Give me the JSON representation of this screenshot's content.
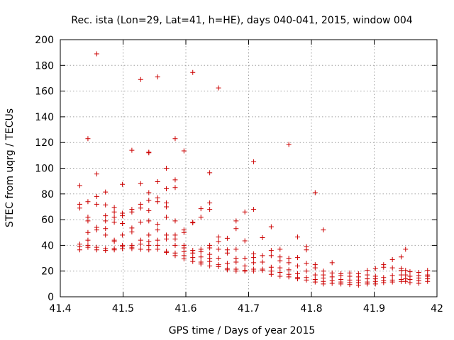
{
  "chart_data": {
    "type": "scatter",
    "title": "Rec. ista (Lon=29, Lat=41, h=HE), days 040-041, 2015, window 004",
    "xlabel": "GPS time / Days of year 2015",
    "ylabel": "STEC from uqrg / TECUs",
    "xlim": [
      41.4,
      42
    ],
    "ylim": [
      0,
      200
    ],
    "xticks": [
      41.4,
      41.5,
      41.6,
      41.7,
      41.8,
      41.9,
      42
    ],
    "xtick_labels": [
      "41.4",
      "41.5",
      "41.6",
      "41.7",
      "41.8",
      "41.9",
      "42"
    ],
    "yticks": [
      0,
      20,
      40,
      60,
      80,
      100,
      120,
      140,
      160,
      180,
      200
    ],
    "ytick_labels": [
      "0",
      "20",
      "40",
      "60",
      "80",
      "100",
      "120",
      "140",
      "160",
      "180",
      "200"
    ],
    "grid": true,
    "marker": "+",
    "color": "#cc0000",
    "points": [
      [
        41.431,
        86.5
      ],
      [
        41.431,
        72
      ],
      [
        41.431,
        69
      ],
      [
        41.431,
        41
      ],
      [
        41.431,
        39
      ],
      [
        41.431,
        36.5
      ],
      [
        41.444,
        123
      ],
      [
        41.444,
        74
      ],
      [
        41.444,
        62
      ],
      [
        41.444,
        59
      ],
      [
        41.444,
        50
      ],
      [
        41.444,
        44
      ],
      [
        41.444,
        40
      ],
      [
        41.444,
        38.5
      ],
      [
        41.458,
        189
      ],
      [
        41.458,
        95.5
      ],
      [
        41.458,
        78
      ],
      [
        41.458,
        72
      ],
      [
        41.458,
        54
      ],
      [
        41.458,
        52
      ],
      [
        41.458,
        38.5
      ],
      [
        41.458,
        36.5
      ],
      [
        41.472,
        81.5
      ],
      [
        41.472,
        71.5
      ],
      [
        41.472,
        63
      ],
      [
        41.472,
        59
      ],
      [
        41.472,
        53
      ],
      [
        41.472,
        48
      ],
      [
        41.472,
        37.5
      ],
      [
        41.472,
        36
      ],
      [
        41.486,
        69.5
      ],
      [
        41.486,
        66
      ],
      [
        41.486,
        62
      ],
      [
        41.486,
        58
      ],
      [
        41.486,
        44
      ],
      [
        41.486,
        43
      ],
      [
        41.486,
        37.5
      ],
      [
        41.486,
        36.5
      ],
      [
        41.499,
        87.5
      ],
      [
        41.499,
        65
      ],
      [
        41.499,
        63
      ],
      [
        41.499,
        57
      ],
      [
        41.499,
        48
      ],
      [
        41.499,
        40
      ],
      [
        41.499,
        39
      ],
      [
        41.499,
        37.5
      ],
      [
        41.514,
        114
      ],
      [
        41.514,
        68
      ],
      [
        41.514,
        66
      ],
      [
        41.514,
        53.5
      ],
      [
        41.514,
        50.5
      ],
      [
        41.514,
        40
      ],
      [
        41.514,
        38.5
      ],
      [
        41.514,
        37.5
      ],
      [
        41.528,
        169
      ],
      [
        41.528,
        88
      ],
      [
        41.528,
        72
      ],
      [
        41.528,
        69
      ],
      [
        41.528,
        58
      ],
      [
        41.528,
        44
      ],
      [
        41.528,
        41
      ],
      [
        41.528,
        37
      ],
      [
        41.541,
        112.5
      ],
      [
        41.541,
        112
      ],
      [
        41.541,
        81
      ],
      [
        41.541,
        75
      ],
      [
        41.541,
        67
      ],
      [
        41.541,
        59
      ],
      [
        41.541,
        48
      ],
      [
        41.541,
        43
      ],
      [
        41.541,
        40
      ],
      [
        41.541,
        36.5
      ],
      [
        41.555,
        171
      ],
      [
        41.555,
        89.5
      ],
      [
        41.555,
        77
      ],
      [
        41.555,
        74
      ],
      [
        41.555,
        56.5
      ],
      [
        41.555,
        52
      ],
      [
        41.555,
        44
      ],
      [
        41.555,
        40
      ],
      [
        41.555,
        37
      ],
      [
        41.569,
        100
      ],
      [
        41.569,
        84
      ],
      [
        41.569,
        73
      ],
      [
        41.569,
        70
      ],
      [
        41.569,
        62
      ],
      [
        41.569,
        48
      ],
      [
        41.569,
        45
      ],
      [
        41.569,
        35.5
      ],
      [
        41.569,
        34.5
      ],
      [
        41.583,
        123
      ],
      [
        41.583,
        91
      ],
      [
        41.583,
        85
      ],
      [
        41.583,
        59
      ],
      [
        41.583,
        48
      ],
      [
        41.583,
        45
      ],
      [
        41.583,
        40
      ],
      [
        41.583,
        34
      ],
      [
        41.583,
        32
      ],
      [
        41.597,
        113.5
      ],
      [
        41.597,
        52
      ],
      [
        41.597,
        50
      ],
      [
        41.597,
        40
      ],
      [
        41.597,
        38
      ],
      [
        41.597,
        35
      ],
      [
        41.597,
        32
      ],
      [
        41.597,
        29.5
      ],
      [
        41.611,
        174.5
      ],
      [
        41.611,
        58
      ],
      [
        41.611,
        57.5
      ],
      [
        41.611,
        36
      ],
      [
        41.611,
        34
      ],
      [
        41.611,
        30.5
      ],
      [
        41.611,
        27.5
      ],
      [
        41.624,
        68.5
      ],
      [
        41.624,
        62
      ],
      [
        41.624,
        37
      ],
      [
        41.624,
        35
      ],
      [
        41.624,
        31
      ],
      [
        41.624,
        27
      ],
      [
        41.624,
        25.5
      ],
      [
        41.638,
        96.5
      ],
      [
        41.638,
        73
      ],
      [
        41.638,
        68
      ],
      [
        41.638,
        40
      ],
      [
        41.638,
        38
      ],
      [
        41.638,
        33
      ],
      [
        41.638,
        30
      ],
      [
        41.638,
        27.5
      ],
      [
        41.638,
        24
      ],
      [
        41.652,
        162.5
      ],
      [
        41.652,
        46.5
      ],
      [
        41.652,
        43
      ],
      [
        41.652,
        37
      ],
      [
        41.652,
        30
      ],
      [
        41.652,
        25
      ],
      [
        41.652,
        23.5
      ],
      [
        41.666,
        45.5
      ],
      [
        41.666,
        36.5
      ],
      [
        41.666,
        34
      ],
      [
        41.666,
        26
      ],
      [
        41.666,
        22
      ],
      [
        41.666,
        21
      ],
      [
        41.68,
        59
      ],
      [
        41.68,
        53
      ],
      [
        41.68,
        37
      ],
      [
        41.68,
        30
      ],
      [
        41.68,
        27
      ],
      [
        41.68,
        21.5
      ],
      [
        41.68,
        20
      ],
      [
        41.694,
        66
      ],
      [
        41.694,
        43.5
      ],
      [
        41.694,
        30
      ],
      [
        41.694,
        24
      ],
      [
        41.694,
        20.5
      ],
      [
        41.694,
        20
      ],
      [
        41.708,
        105
      ],
      [
        41.708,
        68
      ],
      [
        41.708,
        33.5
      ],
      [
        41.708,
        30.5
      ],
      [
        41.708,
        26.5
      ],
      [
        41.708,
        21.5
      ],
      [
        41.708,
        20
      ],
      [
        41.722,
        46
      ],
      [
        41.722,
        32
      ],
      [
        41.722,
        27
      ],
      [
        41.722,
        21.5
      ],
      [
        41.722,
        20.5
      ],
      [
        41.736,
        54.5
      ],
      [
        41.736,
        36
      ],
      [
        41.736,
        32
      ],
      [
        41.736,
        23
      ],
      [
        41.736,
        20
      ],
      [
        41.736,
        17.5
      ],
      [
        41.75,
        37
      ],
      [
        41.75,
        31
      ],
      [
        41.75,
        28
      ],
      [
        41.75,
        22.5
      ],
      [
        41.75,
        19
      ],
      [
        41.75,
        16
      ],
      [
        41.764,
        118.5
      ],
      [
        41.764,
        30
      ],
      [
        41.764,
        26.5
      ],
      [
        41.764,
        21
      ],
      [
        41.764,
        17.5
      ],
      [
        41.764,
        15.5
      ],
      [
        41.778,
        46.5
      ],
      [
        41.778,
        30.5
      ],
      [
        41.778,
        24
      ],
      [
        41.778,
        18
      ],
      [
        41.778,
        15
      ],
      [
        41.778,
        14
      ],
      [
        41.792,
        39
      ],
      [
        41.792,
        36.5
      ],
      [
        41.792,
        26
      ],
      [
        41.792,
        20
      ],
      [
        41.792,
        15
      ],
      [
        41.792,
        13
      ],
      [
        41.806,
        81
      ],
      [
        41.806,
        25
      ],
      [
        41.806,
        22.5
      ],
      [
        41.806,
        17
      ],
      [
        41.806,
        13.5
      ],
      [
        41.806,
        11.5
      ],
      [
        41.819,
        52
      ],
      [
        41.819,
        20
      ],
      [
        41.819,
        17
      ],
      [
        41.819,
        14.5
      ],
      [
        41.819,
        12
      ],
      [
        41.819,
        10
      ],
      [
        41.833,
        26.5
      ],
      [
        41.833,
        18.5
      ],
      [
        41.833,
        15.5
      ],
      [
        41.833,
        12.5
      ],
      [
        41.833,
        10.5
      ],
      [
        41.847,
        18
      ],
      [
        41.847,
        16.5
      ],
      [
        41.847,
        13.5
      ],
      [
        41.847,
        11.5
      ],
      [
        41.847,
        10
      ],
      [
        41.861,
        18.5
      ],
      [
        41.861,
        16
      ],
      [
        41.861,
        13
      ],
      [
        41.861,
        11
      ],
      [
        41.861,
        9.5
      ],
      [
        41.875,
        18
      ],
      [
        41.875,
        15.5
      ],
      [
        41.875,
        13
      ],
      [
        41.875,
        11
      ],
      [
        41.875,
        9
      ],
      [
        41.889,
        20.5
      ],
      [
        41.889,
        17
      ],
      [
        41.889,
        14
      ],
      [
        41.889,
        11.5
      ],
      [
        41.889,
        10
      ],
      [
        41.902,
        22
      ],
      [
        41.902,
        16
      ],
      [
        41.902,
        14
      ],
      [
        41.902,
        12
      ],
      [
        41.902,
        10
      ],
      [
        41.915,
        25
      ],
      [
        41.915,
        23
      ],
      [
        41.915,
        15
      ],
      [
        41.915,
        12.5
      ],
      [
        41.915,
        11
      ],
      [
        41.929,
        29
      ],
      [
        41.929,
        22.5
      ],
      [
        41.929,
        16.5
      ],
      [
        41.929,
        13
      ],
      [
        41.929,
        11.5
      ],
      [
        41.943,
        31
      ],
      [
        41.943,
        22
      ],
      [
        41.943,
        20.5
      ],
      [
        41.943,
        17
      ],
      [
        41.943,
        13.5
      ],
      [
        41.943,
        12
      ],
      [
        41.95,
        37
      ],
      [
        41.95,
        20.5
      ],
      [
        41.95,
        17
      ],
      [
        41.95,
        14
      ],
      [
        41.95,
        12
      ],
      [
        41.957,
        19.5
      ],
      [
        41.957,
        16
      ],
      [
        41.957,
        13.5
      ],
      [
        41.957,
        11
      ],
      [
        41.971,
        19
      ],
      [
        41.971,
        16.5
      ],
      [
        41.971,
        14.5
      ],
      [
        41.971,
        12.5
      ],
      [
        41.971,
        10.5
      ],
      [
        41.985,
        20.5
      ],
      [
        41.985,
        17
      ],
      [
        41.985,
        16
      ],
      [
        41.985,
        14
      ],
      [
        41.985,
        12
      ]
    ]
  }
}
